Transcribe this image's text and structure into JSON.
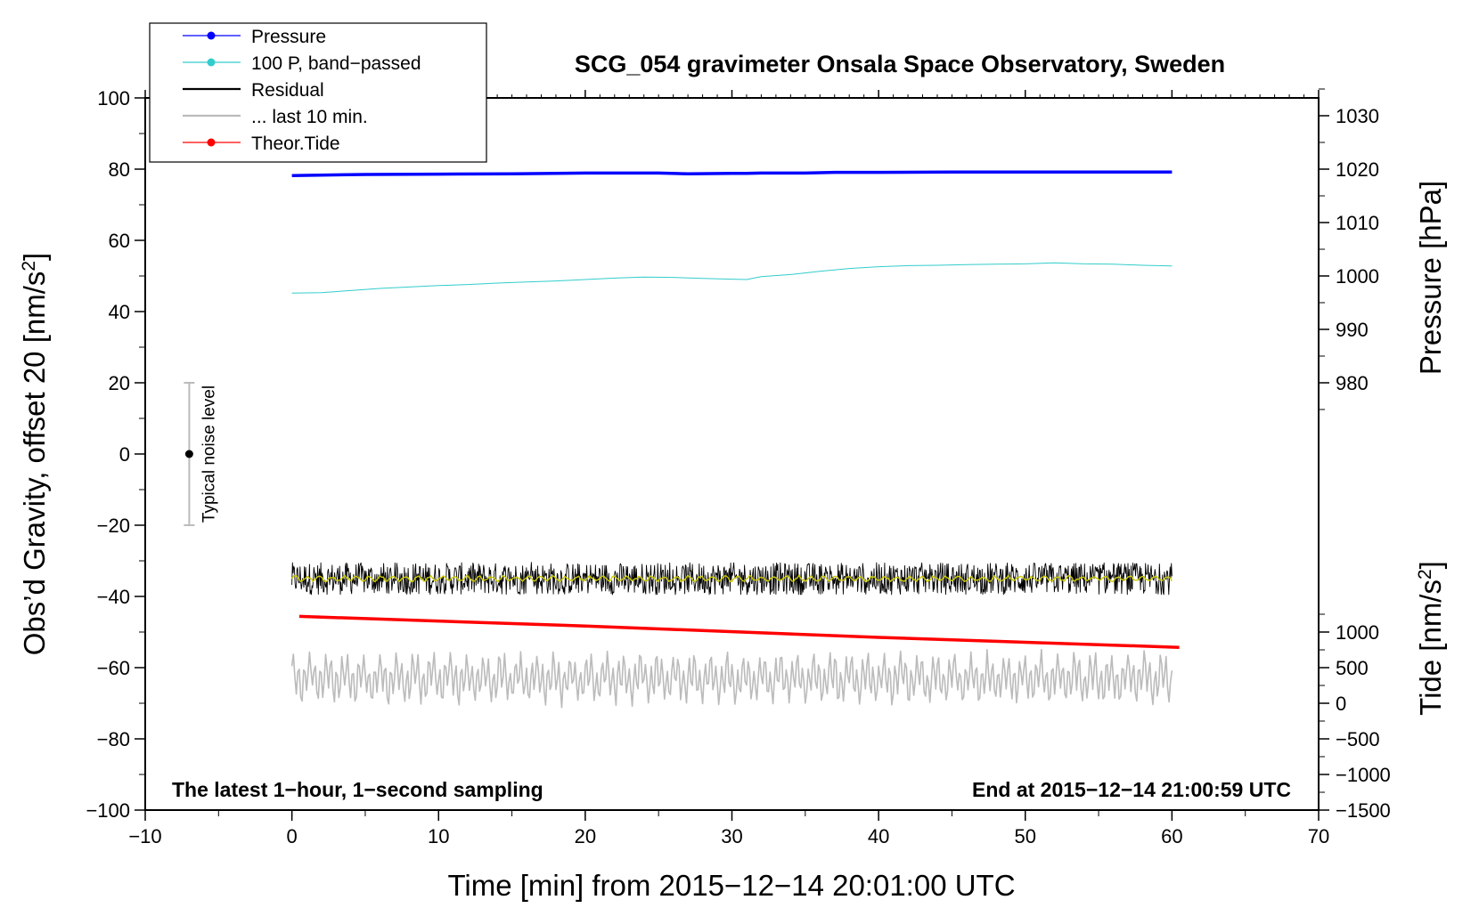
{
  "chart_data": {
    "type": "line",
    "title": "SCG_054 gravimeter Onsala Space Observatory, Sweden",
    "xlabel": "Time [min] from 2015−12−14 20:01:00 UTC",
    "ylabel_left": "Obs’d Gravity, offset 20 [nm/s",
    "ylabel_left_sup": "2",
    "ylabel_left_tail": "]",
    "ylabel_right_pressure": "Pressure [hPa]",
    "ylabel_right_tide": "Tide [nm/s",
    "ylabel_right_tide_sup": "2",
    "ylabel_right_tide_tail": "]",
    "xlim": [
      -10,
      70
    ],
    "ylim": [
      -100,
      100
    ],
    "xticks": [
      -10,
      0,
      10,
      20,
      30,
      40,
      50,
      60,
      70
    ],
    "xtick_labels": [
      "−10",
      "0",
      "10",
      "20",
      "30",
      "40",
      "50",
      "60",
      "70"
    ],
    "yticks": [
      -100,
      -80,
      -60,
      -40,
      -20,
      0,
      20,
      40,
      60,
      80,
      100
    ],
    "ytick_labels": [
      "−100",
      "−80",
      "−60",
      "−40",
      "−20",
      "0",
      "20",
      "40",
      "60",
      "80",
      "100"
    ],
    "pressure_axis": {
      "ticks": [
        980,
        990,
        1000,
        1010,
        1020,
        1030
      ],
      "tick_labels": [
        "980",
        "990",
        "1000",
        "1010",
        "1020",
        "1030"
      ],
      "left_value_at_980": 20,
      "left_units_per_hpa": 1.5
    },
    "tide_axis": {
      "ticks": [
        -1500,
        -1000,
        -500,
        0,
        500,
        1000
      ],
      "tick_labels": [
        "−1500",
        "−1000",
        "−500",
        "0",
        "500",
        "1000"
      ],
      "left_value_at_minus1500": -100,
      "left_units_per_nms2": 0.02
    },
    "annotations": {
      "bottom_left": "The latest 1−hour, 1−second sampling",
      "bottom_right": "End at 2015−12−14 21:00:59 UTC",
      "noise_label": "Typical noise level"
    },
    "noise_bar": {
      "x": -7,
      "center": 0,
      "low": -20,
      "high": 20
    },
    "legend": {
      "position": "top-left",
      "entries": [
        {
          "label": "Pressure",
          "color": "#0000ff",
          "marker": true
        },
        {
          "label": "100 P, band−passed",
          "color": "#33cccc",
          "marker": true
        },
        {
          "label": "Residual",
          "color": "#000000",
          "marker": false
        },
        {
          "label": "... last 10 min.",
          "color": "#bbbbbb",
          "marker": false
        },
        {
          "label": "Theor.Tide",
          "color": "#ff0000",
          "marker": true
        }
      ]
    },
    "series": [
      {
        "name": "Pressure",
        "color": "#0000ff",
        "x": [
          0,
          5,
          10,
          15,
          20,
          25,
          27,
          30,
          31,
          32,
          35,
          37,
          40,
          45,
          50,
          55,
          60
        ],
        "y": [
          78.2,
          78.5,
          78.6,
          78.7,
          78.9,
          78.9,
          78.7,
          78.8,
          78.8,
          78.9,
          78.9,
          79.1,
          79.1,
          79.2,
          79.2,
          79.2,
          79.2
        ]
      },
      {
        "name": "100 P, band−passed",
        "color": "#33cccc",
        "x": [
          0,
          2,
          4,
          6,
          8,
          10,
          12,
          14,
          16,
          18,
          20,
          22,
          24,
          26,
          28,
          30,
          31,
          32,
          34,
          36,
          38,
          40,
          42,
          44,
          46,
          48,
          50,
          52,
          54,
          56,
          58,
          60
        ],
        "y": [
          45.2,
          45.3,
          45.9,
          46.5,
          46.9,
          47.3,
          47.6,
          48.0,
          48.3,
          48.6,
          49.0,
          49.4,
          49.7,
          49.6,
          49.3,
          49.1,
          49.0,
          49.8,
          50.4,
          51.3,
          52.1,
          52.6,
          52.9,
          53.0,
          53.2,
          53.3,
          53.4,
          53.7,
          53.4,
          53.3,
          53.0,
          52.8
        ]
      },
      {
        "name": "Residual",
        "color": "#000000",
        "x_start": 0,
        "x_end": 60,
        "center": -35,
        "amplitude": 4.5
      },
      {
        "name": "... last 10 min.",
        "color": "#bbbbbb",
        "x_start": 0,
        "x_end": 60,
        "center": -63,
        "amplitude": 7.5
      },
      {
        "name": "Theor.Tide",
        "color": "#ff0000",
        "x": [
          0.5,
          20,
          40,
          60.5
        ],
        "y": [
          -45.6,
          -48.3,
          -51.5,
          -54.3
        ]
      },
      {
        "name": "",
        "color": "#cccc00",
        "x_start": 0,
        "x_end": 60,
        "center": -35,
        "amplitude": 0.6
      }
    ]
  }
}
